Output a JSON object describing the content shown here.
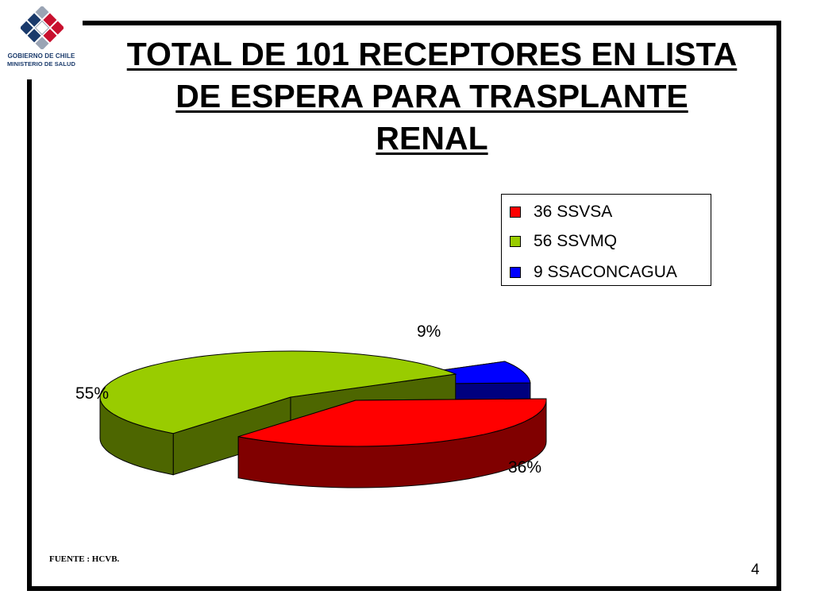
{
  "slide": {
    "title_lines": [
      "TOTAL DE 101 RECEPTORES  EN LISTA",
      "DE ESPERA PARA TRASPLANTE",
      "RENAL"
    ],
    "source": "FUENTE : HCVB.",
    "page_number": "4"
  },
  "logo": {
    "line1": "GOBIERNO DE CHILE",
    "line2": "MINISTERIO DE SALUD",
    "colors": [
      "#c8102e",
      "#1a3a6b",
      "#9aa4b4"
    ]
  },
  "chart_data": {
    "type": "pie",
    "title": "",
    "legend_position": "top-right",
    "categories": [
      "36 SSVSA",
      "56 SSVMQ",
      "9 SSACONCAGUA"
    ],
    "values": [
      36,
      56,
      9
    ],
    "percent_labels": [
      "36%",
      "55%",
      "9%"
    ],
    "colors": [
      "#ff0000",
      "#99cc00",
      "#0000ff"
    ],
    "side_colors": [
      "#800000",
      "#4d6600",
      "#00007f"
    ],
    "exploded": true,
    "three_d": true
  }
}
